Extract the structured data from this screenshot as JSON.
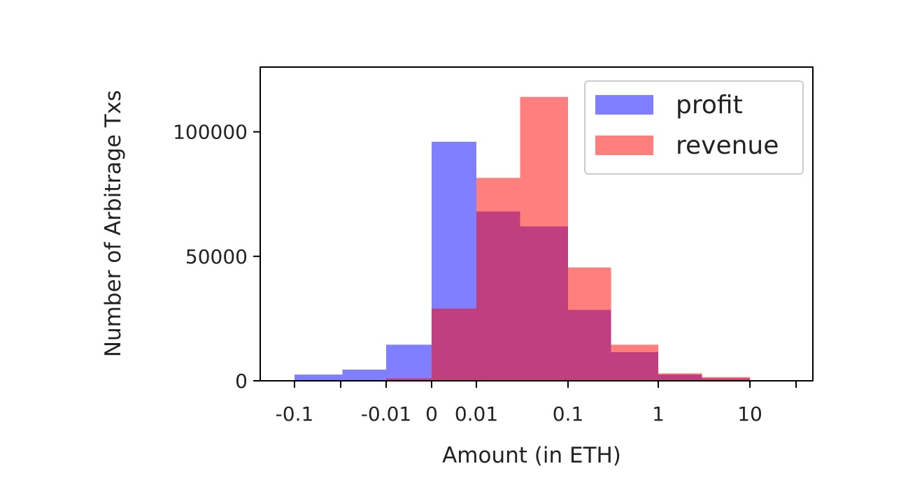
{
  "chart_data": {
    "type": "bar",
    "subtype": "overlapping-histogram",
    "title": "",
    "xlabel": "Amount (in ETH)",
    "ylabel": "Number of Arbitrage Txs",
    "xscale": "symlog",
    "x_tick_labels": [
      "-0.1",
      "-0.01",
      "0",
      "0.01",
      "0.1",
      "1",
      "10"
    ],
    "y_ticks": [
      0,
      50000,
      100000
    ],
    "y_tick_labels": [
      "0",
      "50000",
      "100000"
    ],
    "ylim": [
      0,
      126000
    ],
    "bin_edges": [
      -0.1,
      -0.03,
      -0.01,
      0,
      0.01,
      0.03,
      0.1,
      0.3,
      1,
      3,
      10
    ],
    "series": [
      {
        "name": "profit",
        "color": "#0000ff",
        "opacity": 0.5,
        "values": [
          2500,
          4500,
          14500,
          96000,
          68000,
          62000,
          28500,
          11500,
          2500,
          1000
        ]
      },
      {
        "name": "revenue",
        "color": "#ff0000",
        "opacity": 0.5,
        "values": [
          0,
          0,
          1000,
          29000,
          81500,
          114000,
          45500,
          14500,
          3000,
          1500
        ]
      }
    ],
    "grid": false,
    "legend_position": "top-right"
  }
}
